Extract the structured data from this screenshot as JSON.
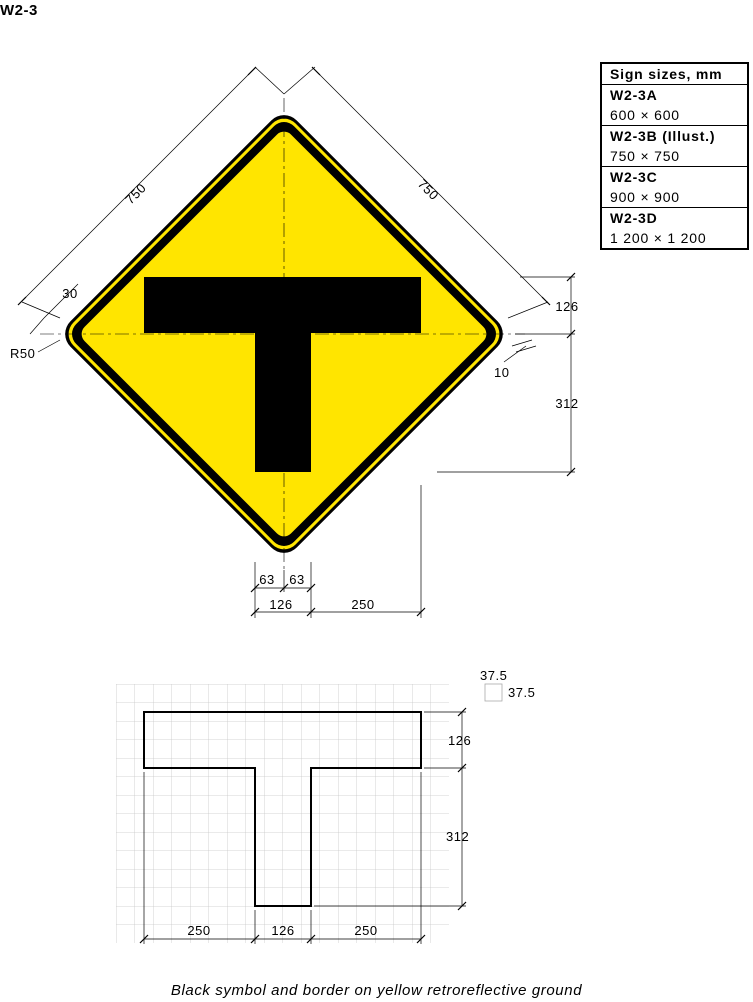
{
  "sign_code": "W2-3",
  "size_table": {
    "header": "Sign sizes, mm",
    "rows": [
      {
        "code": "W2-3A",
        "size": "600 × 600"
      },
      {
        "code": "W2-3B (Illust.)",
        "size": "750 × 750"
      },
      {
        "code": "W2-3C",
        "size": "900 × 900"
      },
      {
        "code": "W2-3D",
        "size": "1 200 × 1 200"
      }
    ]
  },
  "dimensions": {
    "side_left": "750",
    "side_right": "750",
    "border_offset": "30",
    "corner_radius": "R50",
    "border_width": "10",
    "bar_height": "126",
    "stem_length": "312",
    "stem_half_left": "63",
    "stem_half_right": "63",
    "stem_width": "126",
    "bar_overhang": "250"
  },
  "grid": {
    "cell_w": "37.5",
    "cell_h": "37.5",
    "bar_height": "126",
    "stem_length": "312",
    "left_overhang": "250",
    "stem_width": "126",
    "right_overhang": "250"
  },
  "colors": {
    "sign_ground": "#FFE500",
    "symbol": "#000000",
    "grid_line": "#C8C8C8"
  },
  "caption": "Black symbol and border on yellow retroreflective ground"
}
